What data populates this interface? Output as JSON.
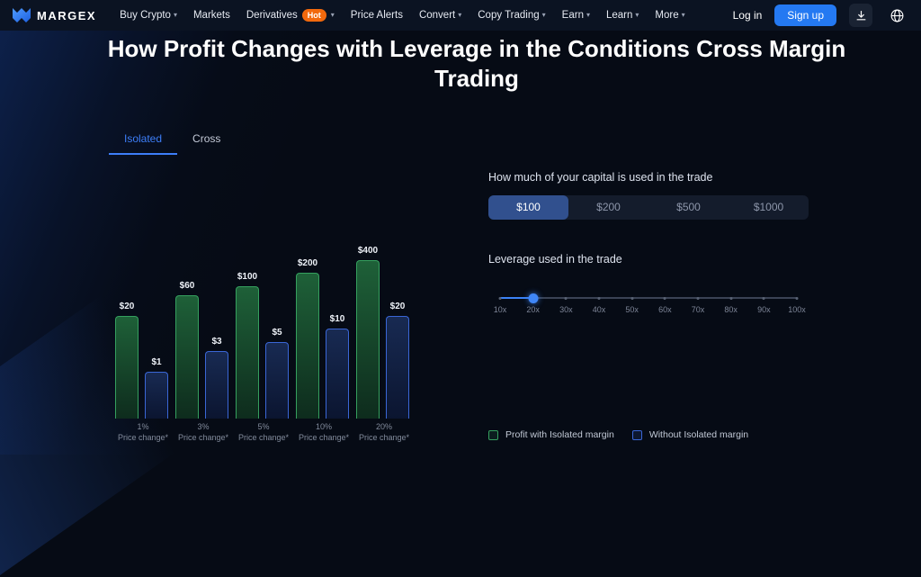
{
  "icons": {
    "chevron_down": "▾"
  },
  "nav": {
    "logo": "MARGEX",
    "items": [
      {
        "label": "Buy Crypto",
        "caret": true
      },
      {
        "label": "Markets",
        "caret": false
      },
      {
        "label": "Derivatives",
        "caret": true,
        "badge": "Hot"
      },
      {
        "label": "Price Alerts",
        "caret": false
      },
      {
        "label": "Convert",
        "caret": true
      },
      {
        "label": "Copy Trading",
        "caret": true
      },
      {
        "label": "Earn",
        "caret": true
      },
      {
        "label": "Learn",
        "caret": true
      },
      {
        "label": "More",
        "caret": true
      }
    ],
    "login_label": "Log in",
    "signup_label": "Sign up",
    "badge_color": "#f2690d",
    "signup_color": "#2479f2"
  },
  "heading": "How Profit Changes with Leverage in the Conditions Cross Margin Trading",
  "tabs": {
    "items": [
      {
        "label": "Isolated"
      },
      {
        "label": "Cross"
      }
    ],
    "active": "Isolated",
    "active_color": "#3d7ef8"
  },
  "capital": {
    "label": "How much of your capital is used in the trade",
    "options": [
      "$100",
      "$200",
      "$500",
      "$1000"
    ],
    "selected": "$100"
  },
  "leverage": {
    "label": "Leverage used in the trade",
    "ticks": [
      "10x",
      "20x",
      "30x",
      "40x",
      "50x",
      "60x",
      "70x",
      "80x",
      "90x",
      "100x"
    ],
    "value": "20x",
    "accent_color": "#3b82f6"
  },
  "legend": [
    {
      "label": "Profit with Isolated margin",
      "color": "#35a05e"
    },
    {
      "label": "Without Isolated margin",
      "color": "#3a66d6"
    }
  ],
  "chart_data": {
    "type": "bar",
    "categories": [
      "1%",
      "3%",
      "5%",
      "10%",
      "20%"
    ],
    "category_sublabel": "Price change*",
    "series": [
      {
        "name": "Profit with Isolated margin",
        "color": "#35a05e",
        "values": [
          20,
          60,
          100,
          200,
          400
        ],
        "labels": [
          "$20",
          "$60",
          "$100",
          "$200",
          "$400"
        ]
      },
      {
        "name": "Without Isolated margin",
        "color": "#3a66d6",
        "values": [
          1,
          3,
          5,
          10,
          20
        ],
        "labels": [
          "$1",
          "$3",
          "$5",
          "$10",
          "$20"
        ]
      }
    ],
    "scale": "log",
    "value_prefix": "$",
    "legend_position": "bottom-right"
  }
}
